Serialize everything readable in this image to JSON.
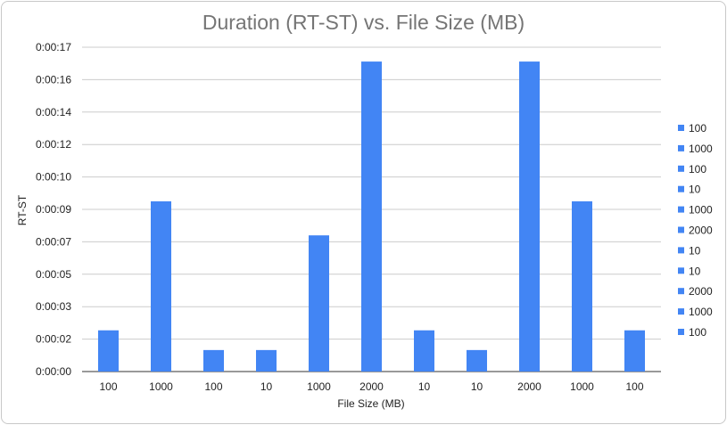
{
  "chart_data": {
    "type": "bar",
    "title": "Duration (RT-ST) vs. File Size (MB)",
    "xlabel": "File Size (MB)",
    "ylabel": "RT-ST",
    "categories": [
      "100",
      "1000",
      "100",
      "10",
      "1000",
      "2000",
      "10",
      "10",
      "2000",
      "1000",
      "100"
    ],
    "values_seconds": [
      2.3,
      9.5,
      1.2,
      1.2,
      7.6,
      17.3,
      2.3,
      1.2,
      17.3,
      9.5,
      2.3
    ],
    "ylim_seconds": [
      0,
      18.1
    ],
    "yticks": [
      "0:00:00",
      "0:00:02",
      "0:00:03",
      "0:00:05",
      "0:00:07",
      "0:00:09",
      "0:00:10",
      "0:00:12",
      "0:00:14",
      "0:00:16",
      "0:00:17"
    ],
    "legend": {
      "position": "right",
      "entries": [
        "100",
        "1000",
        "100",
        "10",
        "1000",
        "2000",
        "10",
        "10",
        "2000",
        "1000",
        "100"
      ]
    },
    "grid": true,
    "bar_color": "#4285f4"
  }
}
